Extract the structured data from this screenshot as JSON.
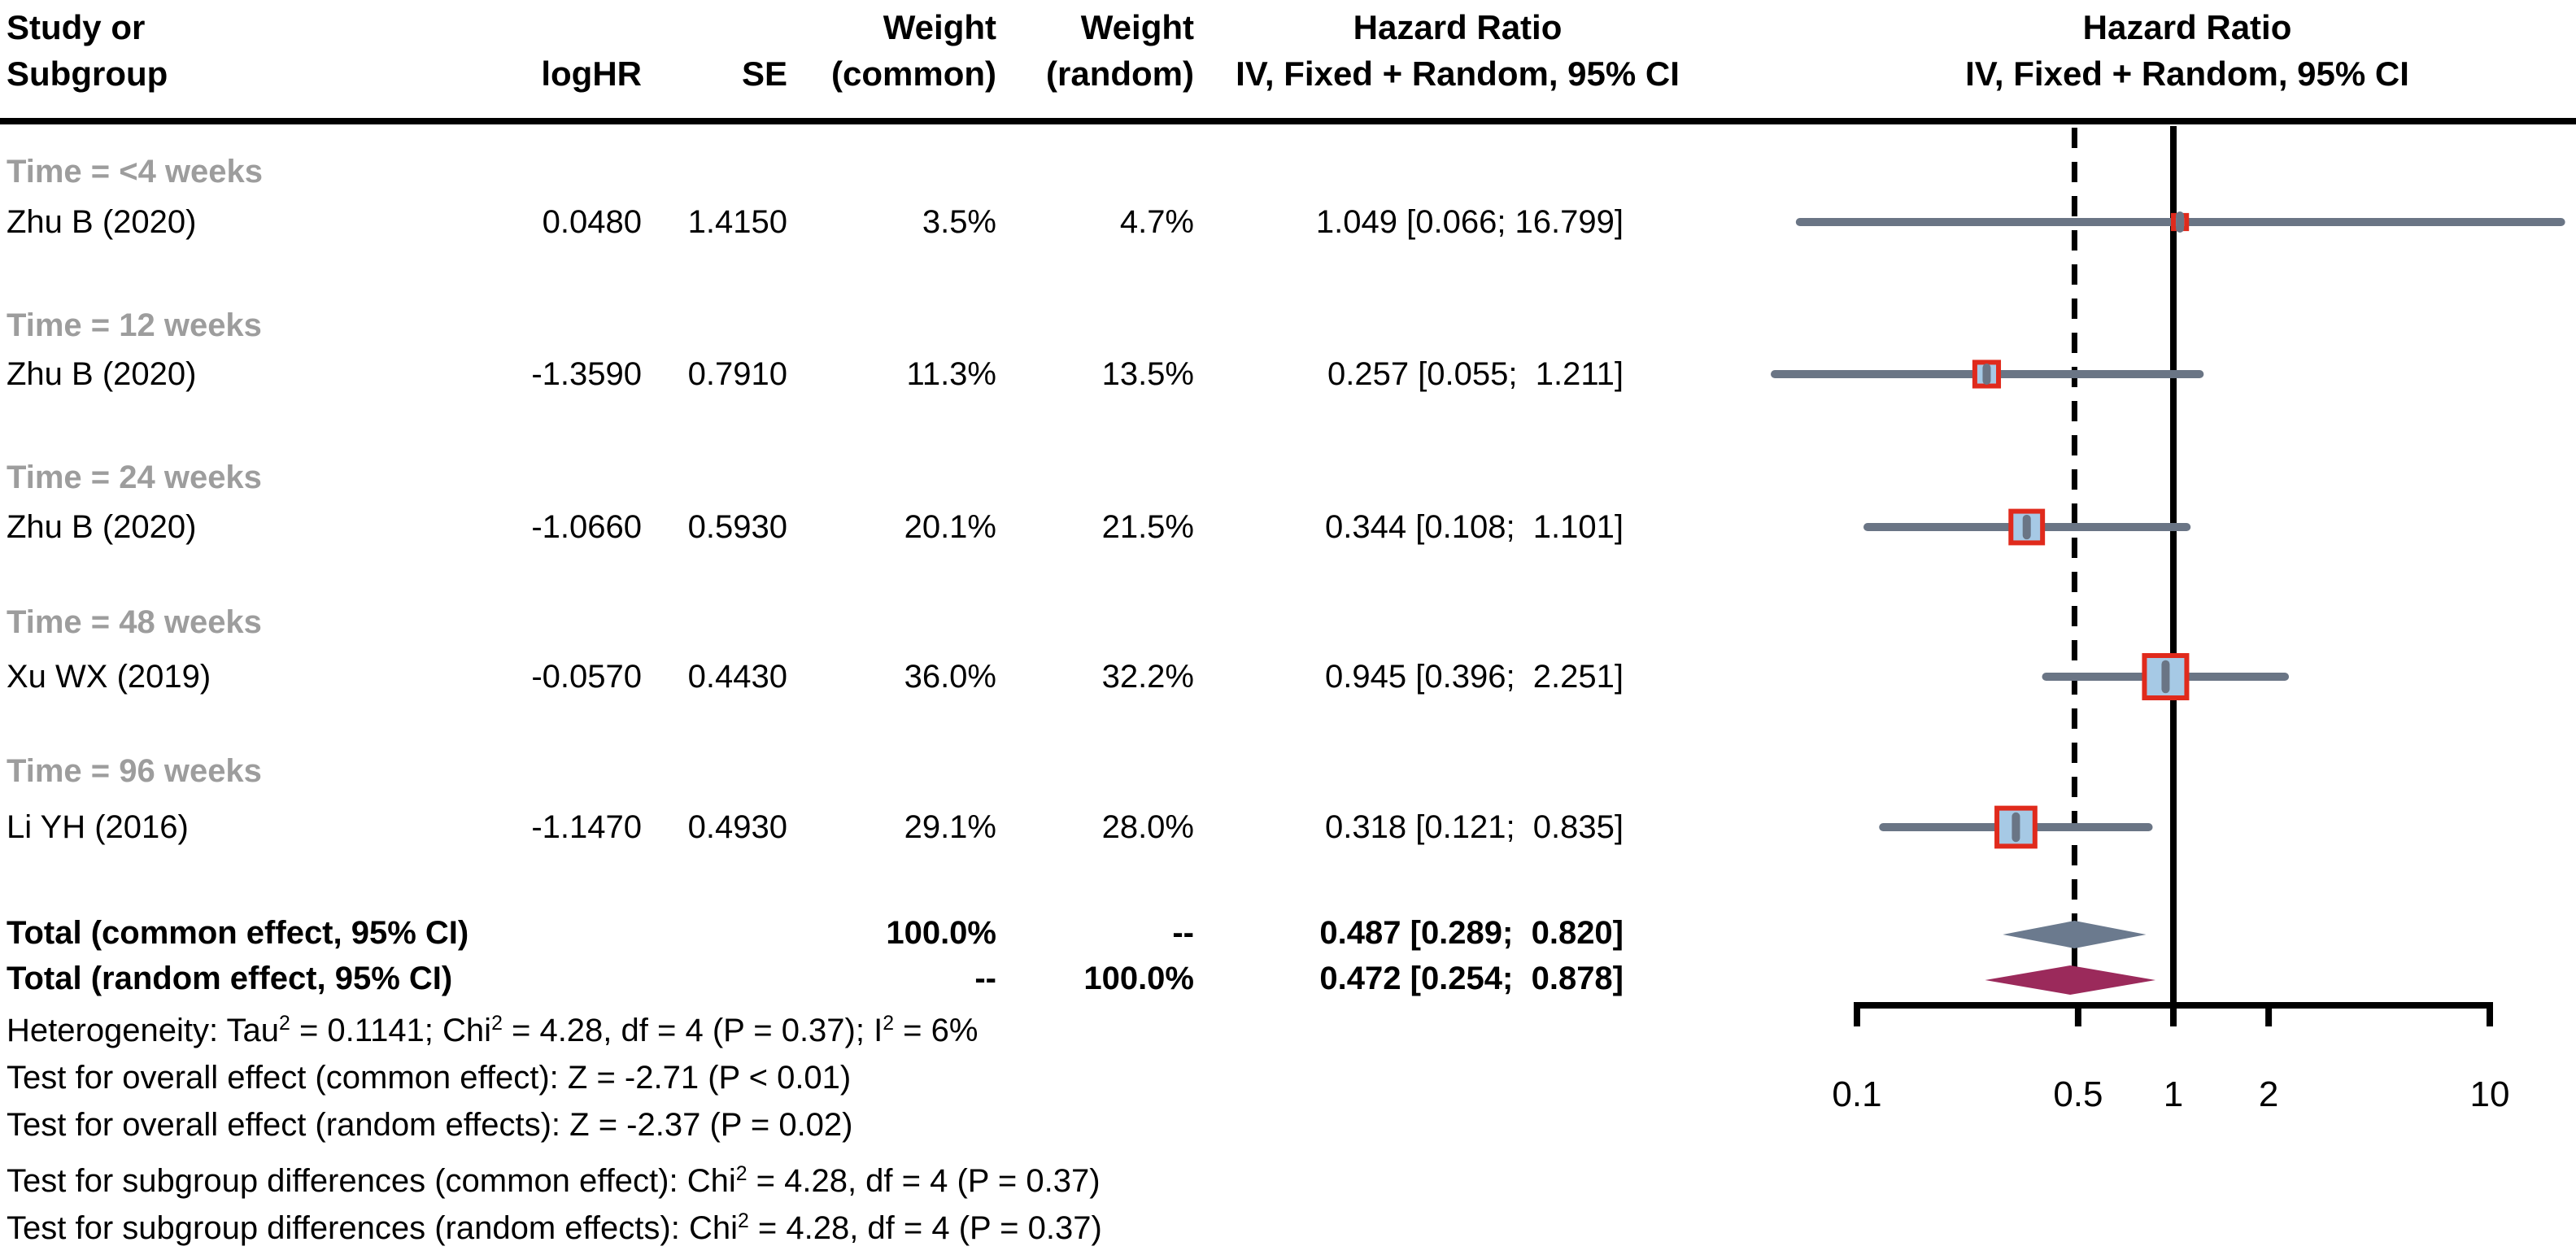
{
  "header": {
    "col_study_line1": "Study or",
    "col_study_line2": "Subgroup",
    "col_loghr": "logHR",
    "col_se": "SE",
    "col_wcommon_line1": "Weight",
    "col_wcommon_line2": "(common)",
    "col_wrandom_line1": "Weight",
    "col_wrandom_line2": "(random)",
    "col_hrtext_line1": "Hazard Ratio",
    "col_hrtext_line2": "IV, Fixed + Random, 95% CI",
    "col_hrplot_line1": "Hazard Ratio",
    "col_hrplot_line2": "IV, Fixed + Random, 95% CI"
  },
  "subgroups": [
    {
      "label": "Time = <4 weeks",
      "study": "Zhu B (2020)",
      "logHR": "0.0480",
      "SE": "1.4150",
      "w_common": "3.5%",
      "w_random": "4.7%",
      "hr_ci": "1.049 [0.066; 16.799]"
    },
    {
      "label": "Time = 12 weeks",
      "study": "Zhu B (2020)",
      "logHR": "-1.3590",
      "SE": "0.7910",
      "w_common": "11.3%",
      "w_random": "13.5%",
      "hr_ci": "0.257 [0.055;  1.211]"
    },
    {
      "label": "Time = 24 weeks",
      "study": "Zhu B (2020)",
      "logHR": "-1.0660",
      "SE": "0.5930",
      "w_common": "20.1%",
      "w_random": "21.5%",
      "hr_ci": "0.344 [0.108;  1.101]"
    },
    {
      "label": "Time = 48 weeks",
      "study": "Xu WX (2019)",
      "logHR": "-0.0570",
      "SE": "0.4430",
      "w_common": "36.0%",
      "w_random": "32.2%",
      "hr_ci": "0.945 [0.396;  2.251]"
    },
    {
      "label": "Time = 96 weeks",
      "study": "Li YH (2016)",
      "logHR": "-1.1470",
      "SE": "0.4930",
      "w_common": "29.1%",
      "w_random": "28.0%",
      "hr_ci": "0.318 [0.121;  0.835]"
    }
  ],
  "totals": [
    {
      "label": "Total (common effect, 95% CI)",
      "w_common": "100.0%",
      "w_random": "--",
      "hr_ci": "0.487 [0.289;  0.820]"
    },
    {
      "label": "Total (random effect, 95% CI)",
      "w_common": "--",
      "w_random": "100.0%",
      "hr_ci": "0.472 [0.254;  0.878]"
    }
  ],
  "footer_lines": [
    {
      "segments": [
        {
          "text": "Heterogeneity: Tau",
          "sup": false
        },
        {
          "text": "2",
          "sup": true
        },
        {
          "text": " = 0.1141; Chi",
          "sup": false
        },
        {
          "text": "2",
          "sup": true
        },
        {
          "text": " = 4.28, df = 4 (P = 0.37); I",
          "sup": false
        },
        {
          "text": "2",
          "sup": true
        },
        {
          "text": " = 6%",
          "sup": false
        }
      ]
    },
    {
      "segments": [
        {
          "text": "Test for overall effect (common effect): Z = -2.71 (P < 0.01)",
          "sup": false
        }
      ]
    },
    {
      "segments": [
        {
          "text": "Test for overall effect (random effects): Z = -2.37 (P = 0.02)",
          "sup": false
        }
      ]
    },
    {
      "segments": [
        {
          "text": "Test for subgroup differences (common effect): Chi",
          "sup": false
        },
        {
          "text": "2",
          "sup": true
        },
        {
          "text": " = 4.28, df = 4 (P = 0.37)",
          "sup": false
        }
      ]
    },
    {
      "segments": [
        {
          "text": "Test for subgroup differences (random effects): Chi",
          "sup": false
        },
        {
          "text": "2",
          "sup": true
        },
        {
          "text": " = 4.28, df = 4 (P = 0.37)",
          "sup": false
        }
      ]
    }
  ],
  "chart_data": {
    "type": "forest",
    "x_scale": "log",
    "axis_ticks": [
      {
        "value": 0.1,
        "label": "0.1"
      },
      {
        "value": 0.5,
        "label": "0.5"
      },
      {
        "value": 1,
        "label": "1"
      },
      {
        "value": 2,
        "label": "2"
      },
      {
        "value": 10,
        "label": "10"
      }
    ],
    "ref_line_value": 1,
    "common_effect_dashed_line_value": 0.487,
    "studies": [
      {
        "label": "Zhu B (2020)",
        "subgroup": "Time = <4 weeks",
        "est": 1.049,
        "lo": 0.066,
        "hi": 16.799,
        "weight_common_pct": 3.5,
        "weight_random_pct": 4.7
      },
      {
        "label": "Zhu B (2020)",
        "subgroup": "Time = 12 weeks",
        "est": 0.257,
        "lo": 0.055,
        "hi": 1.211,
        "weight_common_pct": 11.3,
        "weight_random_pct": 13.5
      },
      {
        "label": "Zhu B (2020)",
        "subgroup": "Time = 24 weeks",
        "est": 0.344,
        "lo": 0.108,
        "hi": 1.101,
        "weight_common_pct": 20.1,
        "weight_random_pct": 21.5
      },
      {
        "label": "Xu WX (2019)",
        "subgroup": "Time = 48 weeks",
        "est": 0.945,
        "lo": 0.396,
        "hi": 2.251,
        "weight_common_pct": 36.0,
        "weight_random_pct": 32.2
      },
      {
        "label": "Li YH (2016)",
        "subgroup": "Time = 96 weeks",
        "est": 0.318,
        "lo": 0.121,
        "hi": 0.835,
        "weight_common_pct": 29.1,
        "weight_random_pct": 28.0
      }
    ],
    "summaries": [
      {
        "label": "Total (common effect, 95% CI)",
        "est": 0.487,
        "lo": 0.289,
        "hi": 0.82,
        "kind": "common"
      },
      {
        "label": "Total (random effect, 95% CI)",
        "est": 0.472,
        "lo": 0.254,
        "hi": 0.878,
        "kind": "random"
      }
    ],
    "colors": {
      "ci_line": "#6a7585",
      "square_fill": "#a6c9e5",
      "square_border": "#e02a1c",
      "diamond_common": "#6b7a8e",
      "diamond_random": "#9b2a5b",
      "ref_line": "#000000",
      "dashed_line": "#000000",
      "subgroup_label": "#9d9d9d",
      "axis": "#000000"
    }
  }
}
